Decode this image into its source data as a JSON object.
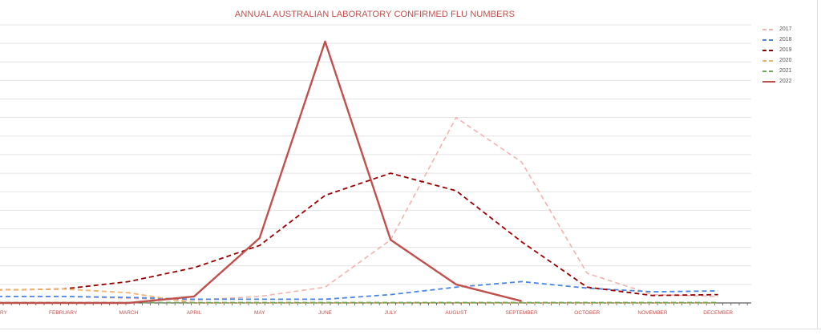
{
  "chart_data": {
    "type": "line",
    "title": "ANNUAL AUSTRALIAN LABORATORY CONFIRMED FLU NUMBERS",
    "categories": [
      "JANUARY",
      "FEBRUARY",
      "MARCH",
      "APRIL",
      "MAY",
      "JUNE",
      "JULY",
      "AUGUST",
      "SEPTEMBER",
      "OCTOBER",
      "NOVEMBER",
      "DECEMBER"
    ],
    "category_labels": [
      "RY",
      "FEBRUARY",
      "MARCH",
      "APRIL",
      "MAY",
      "JUNE",
      "JULY",
      "AUGUST",
      "SEPTEMBER",
      "OCTOBER",
      "NOVEMBER",
      "DECEMBER"
    ],
    "ylim": [
      0,
      15
    ],
    "grid": true,
    "legend_position": "right",
    "series": [
      {
        "name": "2017",
        "color": "#f2b3ae",
        "dash": "dashed",
        "values": [
          0.35,
          0.35,
          0.25,
          0.15,
          0.35,
          0.85,
          3.4,
          10.0,
          7.6,
          1.6,
          0.45,
          0.35
        ]
      },
      {
        "name": "2018",
        "color": "#4a86e8",
        "dash": "dashed",
        "values": [
          0.35,
          0.35,
          0.3,
          0.2,
          0.2,
          0.2,
          0.45,
          0.85,
          1.15,
          0.8,
          0.6,
          0.65
        ]
      },
      {
        "name": "2019",
        "color": "#990000",
        "dash": "dashed",
        "values": [
          0.7,
          0.75,
          1.15,
          1.9,
          3.1,
          5.8,
          7.0,
          6.05,
          3.3,
          0.85,
          0.4,
          0.45
        ]
      },
      {
        "name": "2020",
        "color": "#f6b26b",
        "dash": "dashed",
        "values": [
          0.7,
          0.75,
          0.55,
          0.0,
          0.0,
          0.0,
          0.0,
          0.0,
          0.0,
          0.0,
          0.0,
          0.0
        ]
      },
      {
        "name": "2021",
        "color": "#6aa84f",
        "dash": "dashed",
        "values": [
          0.02,
          0.02,
          0.02,
          0.02,
          0.02,
          0.02,
          0.02,
          0.02,
          0.02,
          0.02,
          0.02,
          0.02
        ]
      },
      {
        "name": "2022",
        "color": "#c0504d",
        "dash": "solid",
        "values": [
          0.0,
          0.0,
          0.0,
          0.35,
          3.5,
          14.1,
          3.4,
          1.0,
          0.1,
          null,
          null,
          null
        ]
      }
    ]
  }
}
